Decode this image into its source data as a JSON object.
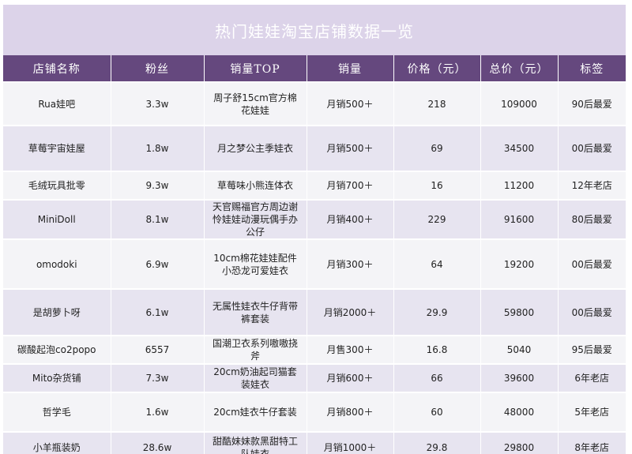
{
  "title": "热门娃娃淘宝店铺数据一览",
  "columns": [
    "店铺名称",
    "粉丝",
    "销量TOP",
    "销量",
    "价格（元）",
    "总价（元）",
    "标签"
  ],
  "rows": [
    {
      "shop": "Rua娃吧",
      "fans": "3.3w",
      "top": "周子舒15cm官方棉花娃娃",
      "sales": "月销500＋",
      "price": "218",
      "total": "109000",
      "tag": "90后最爱"
    },
    {
      "shop": "草莓宇宙娃屋",
      "fans": "1.8w",
      "top": "月之梦公主季娃衣",
      "sales": "月销500＋",
      "price": "69",
      "total": "34500",
      "tag": "00后最爱"
    },
    {
      "shop": "毛绒玩具批零",
      "fans": "9.3w",
      "top": "草莓味小熊连体衣",
      "sales": "月销700＋",
      "price": "16",
      "total": "11200",
      "tag": "12年老店"
    },
    {
      "shop": "MiniDoll",
      "fans": "8.1w",
      "top": "天官赐福官方周边谢怜娃娃动漫玩偶手办公仔",
      "sales": "月销400＋",
      "price": "229",
      "total": "91600",
      "tag": "80后最爱"
    },
    {
      "shop": "omodoki",
      "fans": "6.9w",
      "top": "10cm棉花娃娃配件小恐龙可爱娃衣",
      "sales": "月销300＋",
      "price": "64",
      "total": "19200",
      "tag": "00后最爱"
    },
    {
      "shop": "是胡萝卜呀",
      "fans": "6.1w",
      "top": "无属性娃衣牛仔背带裤套装",
      "sales": "月销2000＋",
      "price": "29.9",
      "total": "59800",
      "tag": "00后最爱"
    },
    {
      "shop": "碳酸起泡co2popo",
      "fans": "6557",
      "top": "国潮卫衣系列嗷嗷挠斧",
      "sales": "月售300＋",
      "price": "16.8",
      "total": "5040",
      "tag": "95后最爱"
    },
    {
      "shop": "Mito杂货铺",
      "fans": "7.3w",
      "top": "20cm奶油起司猫套装娃衣",
      "sales": "月销600＋",
      "price": "66",
      "total": "39600",
      "tag": "6年老店"
    },
    {
      "shop": "哲学毛",
      "fans": "1.6w",
      "top": "20cm娃衣牛仔套装",
      "sales": "月销800＋",
      "price": "60",
      "total": "48000",
      "tag": "5年老店"
    },
    {
      "shop": "小羊瓶装奶",
      "fans": "28.6w",
      "top": "甜酷妹妹款黑甜特工队娃衣",
      "sales": "月销1000＋",
      "price": "29.8",
      "total": "29800",
      "tag": "8年老店"
    }
  ]
}
